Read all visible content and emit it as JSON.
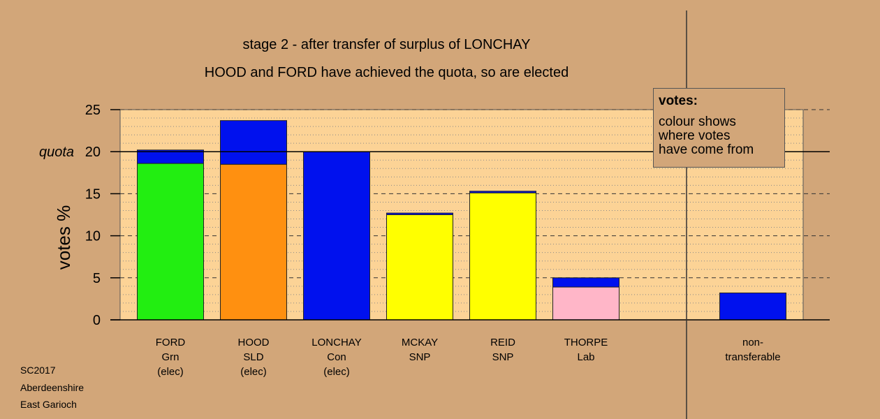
{
  "titles": {
    "line1": "stage 2 - after transfer of surplus of LONCHAY",
    "line2": "HOOD and FORD have achieved the quota, so are elected"
  },
  "legend": {
    "title": "votes:",
    "body": "colour shows\nwhere votes\nhave come from"
  },
  "footer": [
    "SC2017",
    "Aberdeenshire",
    "East Garioch"
  ],
  "colors": {
    "background": "#d2a679",
    "plot": "#fcd396",
    "green": "#22ee11",
    "orange": "#ff9010",
    "blue": "#0011ee",
    "yellow": "#ffff00",
    "pink": "#ffb6c8"
  },
  "chart_data": {
    "type": "bar",
    "stacked": true,
    "ylabel": "votes %",
    "ylim": [
      0,
      25
    ],
    "yticks": [
      0,
      5,
      10,
      15,
      20,
      25
    ],
    "quota": 20,
    "quota_label": "quota",
    "bars": [
      {
        "lines": [
          "FORD",
          "Grn",
          "(elec)"
        ],
        "segments": [
          {
            "value": 18.6,
            "color": "#22ee11"
          },
          {
            "value": 1.6,
            "color": "#0011ee"
          }
        ]
      },
      {
        "lines": [
          "HOOD",
          "SLD",
          "(elec)"
        ],
        "segments": [
          {
            "value": 18.5,
            "color": "#ff9010"
          },
          {
            "value": 5.2,
            "color": "#0011ee"
          }
        ]
      },
      {
        "lines": [
          "LONCHAY",
          "Con",
          "(elec)"
        ],
        "segments": [
          {
            "value": 20.0,
            "color": "#0011ee"
          }
        ]
      },
      {
        "lines": [
          "MCKAY",
          "SNP"
        ],
        "segments": [
          {
            "value": 12.5,
            "color": "#ffff00"
          },
          {
            "value": 0.2,
            "color": "#0011ee"
          }
        ]
      },
      {
        "lines": [
          "REID",
          "SNP"
        ],
        "segments": [
          {
            "value": 15.1,
            "color": "#ffff00"
          },
          {
            "value": 0.2,
            "color": "#0011ee"
          }
        ]
      },
      {
        "lines": [
          "THORPE",
          "Lab"
        ],
        "segments": [
          {
            "value": 3.9,
            "color": "#ffb6c8"
          },
          {
            "value": 1.1,
            "color": "#0011ee"
          }
        ]
      },
      {
        "lines": [
          "non-",
          "transferable"
        ],
        "segments": [
          {
            "value": 3.2,
            "color": "#0011ee"
          }
        ]
      }
    ]
  }
}
